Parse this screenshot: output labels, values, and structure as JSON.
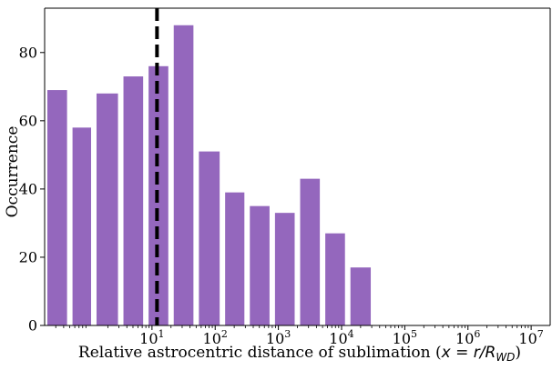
{
  "chart_data": {
    "type": "bar",
    "title": "",
    "xlabel": {
      "prefix": "Relative astrocentric distance of sublimation (",
      "math": "x = r/R",
      "subscript": "WD",
      "suffix": ")"
    },
    "ylabel": "Occurrence",
    "x_scale": "log",
    "xlim": [
      0.2,
      20000000
    ],
    "ylim": [
      0,
      93
    ],
    "grid": false,
    "legend": "none",
    "bin_edges": [
      0.2,
      0.5,
      1.2,
      3.2,
      8,
      20,
      50,
      130,
      320,
      800,
      2000,
      5000,
      12500,
      32000
    ],
    "values": [
      69,
      58,
      68,
      73,
      76,
      88,
      51,
      39,
      35,
      33,
      43,
      27,
      17
    ],
    "bar_color": "#9467bd",
    "vline": {
      "x": 12,
      "color": "#000000",
      "style": "dashed"
    },
    "x_ticks": [
      {
        "value": 10,
        "base": "10",
        "exp": "1"
      },
      {
        "value": 100,
        "base": "10",
        "exp": "2"
      },
      {
        "value": 1000,
        "base": "10",
        "exp": "3"
      },
      {
        "value": 10000,
        "base": "10",
        "exp": "4"
      },
      {
        "value": 100000,
        "base": "10",
        "exp": "5"
      },
      {
        "value": 1000000,
        "base": "10",
        "exp": "6"
      },
      {
        "value": 10000000,
        "base": "10",
        "exp": "7"
      }
    ],
    "y_ticks": [
      0,
      20,
      40,
      60,
      80
    ]
  }
}
